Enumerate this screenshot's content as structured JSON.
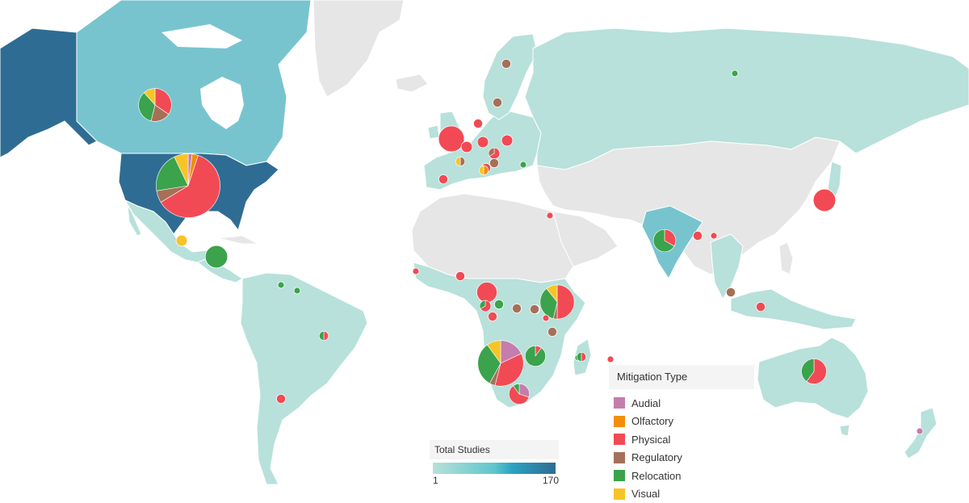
{
  "map": {
    "colors": {
      "ocean": "#ffffff",
      "no_data": "#e6e6e6",
      "low": "#b7e1da",
      "mid": "#77c4cf",
      "high": "#2f6c93",
      "border": "#ffffff"
    }
  },
  "legend_types": {
    "title": "Mitigation Type",
    "items": [
      {
        "label": "Audial",
        "color": "#c47dad"
      },
      {
        "label": "Olfactory",
        "color": "#f28e0c"
      },
      {
        "label": "Physical",
        "color": "#f24a55"
      },
      {
        "label": "Regulatory",
        "color": "#a67058"
      },
      {
        "label": "Relocation",
        "color": "#3aa34c"
      },
      {
        "label": "Visual",
        "color": "#f7c428"
      }
    ]
  },
  "legend_studies": {
    "title": "Total Studies",
    "min_label": "1",
    "max_label": "170"
  },
  "regions": [
    {
      "name": "usa",
      "studies": 170
    },
    {
      "name": "alaska",
      "studies": 170
    },
    {
      "name": "canada",
      "studies": 40
    },
    {
      "name": "russia",
      "studies": 1
    },
    {
      "name": "mexico",
      "studies": 5
    },
    {
      "name": "south-america",
      "studies": 3
    },
    {
      "name": "africa-sub-saharan",
      "studies": 3
    },
    {
      "name": "india",
      "studies": 8
    },
    {
      "name": "australia",
      "studies": 12
    },
    {
      "name": "europe",
      "studies": 5
    },
    {
      "name": "greenland",
      "studies": 0
    }
  ],
  "pies": [
    {
      "id": "usa",
      "total": 98,
      "slices": {
        "Physical": 60,
        "Relocation": 20,
        "Regulatory": 6,
        "Visual": 7,
        "Olfactory": 3,
        "Audial": 2
      }
    },
    {
      "id": "canada",
      "total": 26,
      "slices": {
        "Physical": 9,
        "Regulatory": 5,
        "Relocation": 9,
        "Visual": 3
      }
    },
    {
      "id": "mexico",
      "total": 3,
      "slices": {
        "Visual": 3
      }
    },
    {
      "id": "central-america",
      "total": 12,
      "slices": {
        "Relocation": 12
      }
    },
    {
      "id": "uk",
      "total": 16,
      "slices": {
        "Physical": 16
      }
    },
    {
      "id": "scandinavia-1",
      "total": 2,
      "slices": {
        "Regulatory": 2
      }
    },
    {
      "id": "scandinavia-2",
      "total": 2,
      "slices": {
        "Regulatory": 2
      }
    },
    {
      "id": "europe-1",
      "total": 3,
      "slices": {
        "Physical": 3
      }
    },
    {
      "id": "europe-2",
      "total": 3,
      "slices": {
        "Physical": 2,
        "Regulatory": 1
      }
    },
    {
      "id": "europe-3",
      "total": 3,
      "slices": {
        "Physical": 3
      }
    },
    {
      "id": "europe-4",
      "total": 2,
      "slices": {
        "Physical": 2
      }
    },
    {
      "id": "europe-5",
      "total": 2,
      "slices": {
        "Physical": 2
      }
    },
    {
      "id": "france",
      "total": 3,
      "slices": {
        "Physical": 3
      }
    },
    {
      "id": "spain-1",
      "total": 2,
      "slices": {
        "Physical": 2
      }
    },
    {
      "id": "spain-2",
      "total": 2,
      "slices": {
        "Visual": 1,
        "Regulatory": 1
      }
    },
    {
      "id": "italy",
      "total": 2,
      "slices": {
        "Visual": 1,
        "Olfactory": 1
      }
    },
    {
      "id": "balkans",
      "total": 2,
      "slices": {
        "Regulatory": 2
      }
    },
    {
      "id": "greece",
      "total": 1,
      "slices": {
        "Relocation": 1
      }
    },
    {
      "id": "russia",
      "total": 1,
      "slices": {
        "Relocation": 1
      }
    },
    {
      "id": "japan",
      "total": 12,
      "slices": {
        "Physical": 12
      }
    },
    {
      "id": "israel",
      "total": 1,
      "slices": {
        "Physical": 1
      }
    },
    {
      "id": "india",
      "total": 12,
      "slices": {
        "Relocation": 8,
        "Physical": 4
      }
    },
    {
      "id": "bangladesh",
      "total": 2,
      "slices": {
        "Physical": 2
      }
    },
    {
      "id": "myanmar",
      "total": 1,
      "slices": {
        "Physical": 1
      }
    },
    {
      "id": "malaysia",
      "total": 2,
      "slices": {
        "Regulatory": 2
      }
    },
    {
      "id": "indonesia",
      "total": 2,
      "slices": {
        "Physical": 2
      }
    },
    {
      "id": "venezuela-1",
      "total": 1,
      "slices": {
        "Relocation": 1
      }
    },
    {
      "id": "venezuela-2",
      "total": 1,
      "slices": {
        "Relocation": 1
      }
    },
    {
      "id": "brazil",
      "total": 2,
      "slices": {
        "Physical": 1,
        "Relocation": 1
      }
    },
    {
      "id": "argentina",
      "total": 2,
      "slices": {
        "Physical": 2
      }
    },
    {
      "id": "senegal",
      "total": 1,
      "slices": {
        "Physical": 1
      }
    },
    {
      "id": "ghana",
      "total": 2,
      "slices": {
        "Physical": 2
      }
    },
    {
      "id": "cameroon",
      "total": 10,
      "slices": {
        "Physical": 10
      }
    },
    {
      "id": "central-africa-1",
      "total": 3,
      "slices": {
        "Physical": 2,
        "Relocation": 1
      }
    },
    {
      "id": "central-africa-2",
      "total": 2,
      "slices": {
        "Relocation": 2
      }
    },
    {
      "id": "central-africa-3",
      "total": 2,
      "slices": {
        "Regulatory": 2
      }
    },
    {
      "id": "central-africa-4",
      "total": 2,
      "slices": {
        "Regulatory": 2
      }
    },
    {
      "id": "central-africa-5",
      "total": 2,
      "slices": {
        "Physical": 2
      }
    },
    {
      "id": "kenya",
      "total": 28,
      "slices": {
        "Physical": 14,
        "Relocation": 10,
        "Visual": 3,
        "Regulatory": 1
      }
    },
    {
      "id": "tanzania-1",
      "total": 2,
      "slices": {
        "Regulatory": 2
      }
    },
    {
      "id": "tanzania-2",
      "total": 2,
      "slices": {
        "Regulatory": 2
      }
    },
    {
      "id": "east-africa-1",
      "total": 1,
      "slices": {
        "Physical": 1
      }
    },
    {
      "id": "east-africa-2",
      "total": 1,
      "slices": {
        "Physical": 1
      }
    },
    {
      "id": "east-africa-3",
      "total": 1,
      "slices": {
        "Relocation": 1
      }
    },
    {
      "id": "botswana",
      "total": 50,
      "slices": {
        "Physical": 18,
        "Relocation": 16,
        "Audial": 9,
        "Visual": 5,
        "Regulatory": 2
      }
    },
    {
      "id": "zimbabwe",
      "total": 10,
      "slices": {
        "Relocation": 9,
        "Physical": 1
      }
    },
    {
      "id": "south-africa",
      "total": 10,
      "slices": {
        "Physical": 6,
        "Audial": 3,
        "Relocation": 1
      }
    },
    {
      "id": "madagascar",
      "total": 2,
      "slices": {
        "Relocation": 1,
        "Physical": 1
      }
    },
    {
      "id": "mauritius",
      "total": 1,
      "slices": {
        "Physical": 1
      }
    },
    {
      "id": "australia",
      "total": 15,
      "slices": {
        "Physical": 9,
        "Relocation": 6
      }
    },
    {
      "id": "new-zealand",
      "total": 1,
      "slices": {
        "Audial": 1
      }
    }
  ]
}
